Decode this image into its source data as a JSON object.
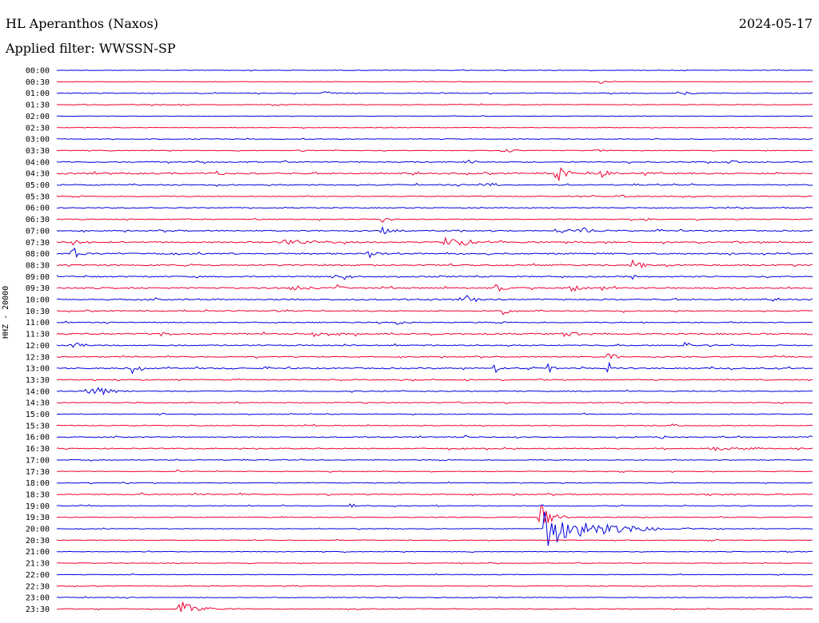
{
  "header": {
    "station": "HL Aperanthos (Naxos)",
    "date": "2024-05-17",
    "filter": "Applied filter: WWSSN-SP"
  },
  "chart_data": {
    "type": "line",
    "title": "HL Aperanthos (Naxos)",
    "ylabel": "HHZ - 20000",
    "xlabel": "",
    "colors": [
      "#0000dd",
      "#ee0033"
    ],
    "row_labels": [
      "00:00",
      "00:30",
      "01:00",
      "01:30",
      "02:00",
      "02:30",
      "03:00",
      "03:30",
      "04:00",
      "04:30",
      "05:00",
      "05:30",
      "06:00",
      "06:30",
      "07:00",
      "07:30",
      "08:00",
      "08:30",
      "09:00",
      "09:30",
      "10:00",
      "10:30",
      "11:00",
      "11:30",
      "12:00",
      "12:30",
      "13:00",
      "13:30",
      "14:00",
      "14:30",
      "15:00",
      "15:30",
      "16:00",
      "16:30",
      "17:00",
      "17:30",
      "18:00",
      "18:30",
      "19:00",
      "19:30",
      "20:00",
      "20:30",
      "21:00",
      "21:30",
      "22:00",
      "22:30",
      "23:00",
      "23:30"
    ],
    "row_noise": [
      0.6,
      0.5,
      0.8,
      0.9,
      0.5,
      0.6,
      0.8,
      0.7,
      1.2,
      1.6,
      1.2,
      1.0,
      1.0,
      1.1,
      1.3,
      1.5,
      1.6,
      1.6,
      1.4,
      1.5,
      1.6,
      1.2,
      1.1,
      1.7,
      1.3,
      1.1,
      1.4,
      1.1,
      1.0,
      1.0,
      0.9,
      0.9,
      1.0,
      1.2,
      0.9,
      0.8,
      0.9,
      1.2,
      0.8,
      0.9,
      0.8,
      0.8,
      0.7,
      0.7,
      0.7,
      0.7,
      0.8,
      0.9
    ],
    "events": [
      {
        "row": 1,
        "pos": 0.72,
        "amp": 5,
        "dur": 0.005
      },
      {
        "row": 2,
        "pos": 0.35,
        "amp": 4,
        "dur": 0.01
      },
      {
        "row": 2,
        "pos": 0.82,
        "amp": 4,
        "dur": 0.012
      },
      {
        "row": 7,
        "pos": 0.32,
        "amp": 3,
        "dur": 0.01
      },
      {
        "row": 7,
        "pos": 0.59,
        "amp": 4,
        "dur": 0.012
      },
      {
        "row": 7,
        "pos": 0.71,
        "amp": 3,
        "dur": 0.01
      },
      {
        "row": 8,
        "pos": 0.54,
        "amp": 5,
        "dur": 0.01
      },
      {
        "row": 8,
        "pos": 0.89,
        "amp": 4,
        "dur": 0.01
      },
      {
        "row": 9,
        "pos": 0.21,
        "amp": 4,
        "dur": 0.01
      },
      {
        "row": 9,
        "pos": 0.66,
        "amp": 16,
        "dur": 0.01
      },
      {
        "row": 9,
        "pos": 0.72,
        "amp": 5,
        "dur": 0.012
      },
      {
        "row": 9,
        "pos": 0.78,
        "amp": 6,
        "dur": 0.004
      },
      {
        "row": 10,
        "pos": 0.56,
        "amp": 5,
        "dur": 0.015
      },
      {
        "row": 11,
        "pos": 0.74,
        "amp": 4,
        "dur": 0.01
      },
      {
        "row": 13,
        "pos": 0.43,
        "amp": 8,
        "dur": 0.003
      },
      {
        "row": 13,
        "pos": 0.78,
        "amp": 9,
        "dur": 0.004
      },
      {
        "row": 14,
        "pos": 0.43,
        "amp": 5,
        "dur": 0.012
      },
      {
        "row": 14,
        "pos": 0.66,
        "amp": 8,
        "dur": 0.01
      },
      {
        "row": 14,
        "pos": 0.69,
        "amp": 6,
        "dur": 0.015
      },
      {
        "row": 15,
        "pos": 0.02,
        "amp": 5,
        "dur": 0.01
      },
      {
        "row": 15,
        "pos": 0.3,
        "amp": 4,
        "dur": 0.05
      },
      {
        "row": 15,
        "pos": 0.51,
        "amp": 6,
        "dur": 0.04
      },
      {
        "row": 16,
        "pos": 0.02,
        "amp": 10,
        "dur": 0.008
      },
      {
        "row": 16,
        "pos": 0.41,
        "amp": 6,
        "dur": 0.015
      },
      {
        "row": 17,
        "pos": 0.76,
        "amp": 7,
        "dur": 0.012
      },
      {
        "row": 18,
        "pos": 0.38,
        "amp": 4,
        "dur": 0.01
      },
      {
        "row": 18,
        "pos": 0.76,
        "amp": 7,
        "dur": 0.008
      },
      {
        "row": 19,
        "pos": 0.31,
        "amp": 5,
        "dur": 0.015
      },
      {
        "row": 19,
        "pos": 0.37,
        "amp": 5,
        "dur": 0.008
      },
      {
        "row": 19,
        "pos": 0.58,
        "amp": 6,
        "dur": 0.01
      },
      {
        "row": 19,
        "pos": 0.68,
        "amp": 6,
        "dur": 0.01
      },
      {
        "row": 19,
        "pos": 0.72,
        "amp": 5,
        "dur": 0.008
      },
      {
        "row": 20,
        "pos": 0.54,
        "amp": 6,
        "dur": 0.012
      },
      {
        "row": 21,
        "pos": 0.59,
        "amp": 8,
        "dur": 0.006
      },
      {
        "row": 22,
        "pos": 0.45,
        "amp": 4,
        "dur": 0.008
      },
      {
        "row": 23,
        "pos": 0.14,
        "amp": 6,
        "dur": 0.008
      },
      {
        "row": 23,
        "pos": 0.34,
        "amp": 5,
        "dur": 0.02
      },
      {
        "row": 23,
        "pos": 0.67,
        "amp": 5,
        "dur": 0.015
      },
      {
        "row": 24,
        "pos": 0.02,
        "amp": 8,
        "dur": 0.008
      },
      {
        "row": 24,
        "pos": 0.83,
        "amp": 5,
        "dur": 0.012
      },
      {
        "row": 25,
        "pos": 0.73,
        "amp": 12,
        "dur": 0.006
      },
      {
        "row": 26,
        "pos": 0.1,
        "amp": 8,
        "dur": 0.01
      },
      {
        "row": 26,
        "pos": 0.58,
        "amp": 10,
        "dur": 0.004
      },
      {
        "row": 26,
        "pos": 0.65,
        "amp": 12,
        "dur": 0.006
      },
      {
        "row": 26,
        "pos": 0.73,
        "amp": 14,
        "dur": 0.003
      },
      {
        "row": 28,
        "pos": 0.04,
        "amp": 9,
        "dur": 0.025
      },
      {
        "row": 31,
        "pos": 0.81,
        "amp": 3,
        "dur": 0.012
      },
      {
        "row": 32,
        "pos": 0.54,
        "amp": 4,
        "dur": 0.004
      },
      {
        "row": 32,
        "pos": 0.8,
        "amp": 4,
        "dur": 0.006
      },
      {
        "row": 33,
        "pos": 0.86,
        "amp": 3,
        "dur": 0.05
      },
      {
        "row": 35,
        "pos": 0.16,
        "amp": 4,
        "dur": 0.004
      },
      {
        "row": 37,
        "pos": 0.11,
        "amp": 5,
        "dur": 0.004
      },
      {
        "row": 37,
        "pos": 0.86,
        "amp": 4,
        "dur": 0.01
      },
      {
        "row": 38,
        "pos": 0.39,
        "amp": 5,
        "dur": 0.003
      },
      {
        "row": 39,
        "pos": 0.64,
        "amp": 26,
        "dur": 0.012
      },
      {
        "row": 40,
        "pos": 0.645,
        "amp": 24,
        "dur": 0.06
      },
      {
        "row": 42,
        "pos": 0.96,
        "amp": 3,
        "dur": 0.008
      },
      {
        "row": 46,
        "pos": 0.96,
        "amp": 3,
        "dur": 0.01
      },
      {
        "row": 47,
        "pos": 0.16,
        "amp": 14,
        "dur": 0.02
      }
    ]
  }
}
